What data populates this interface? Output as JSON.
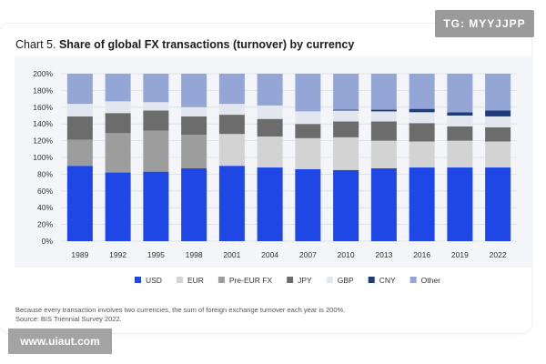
{
  "chart_data": {
    "type": "bar",
    "stacked": true,
    "title_prefix": "Chart 5.",
    "title": "Share of global FX transactions (turnover) by currency",
    "categories": [
      "1989",
      "1992",
      "1995",
      "1998",
      "2001",
      "2004",
      "2007",
      "2010",
      "2013",
      "2016",
      "2019",
      "2022"
    ],
    "y_ticks": [
      "0%",
      "20%",
      "40%",
      "60%",
      "80%",
      "100%",
      "120%",
      "140%",
      "160%",
      "180%",
      "200%"
    ],
    "ylim": [
      0,
      200
    ],
    "series": [
      {
        "name": "USD",
        "color": "#1f47e6",
        "values": [
          90,
          82,
          83,
          87,
          90,
          88,
          86,
          85,
          87,
          88,
          88,
          88
        ]
      },
      {
        "name": "EUR",
        "color": "#d3d3d3",
        "values": [
          0,
          0,
          0,
          0,
          38,
          37,
          37,
          39,
          33,
          31,
          32,
          31
        ]
      },
      {
        "name": "Pre-EUR FX",
        "color": "#9d9d9d",
        "values": [
          31,
          47,
          49,
          40,
          0,
          0,
          0,
          0,
          0,
          0,
          0,
          0
        ]
      },
      {
        "name": "JPY",
        "color": "#6c6c6c",
        "values": [
          28,
          24,
          24,
          22,
          23,
          21,
          17,
          19,
          23,
          22,
          17,
          17
        ]
      },
      {
        "name": "GBP",
        "color": "#e2e6ee",
        "values": [
          15,
          14,
          10,
          11,
          13,
          16,
          15,
          13,
          12,
          13,
          13,
          13
        ]
      },
      {
        "name": "CNY",
        "color": "#1f3b7a",
        "values": [
          0,
          0,
          0,
          0,
          0,
          0,
          0,
          1,
          2,
          4,
          4,
          7
        ]
      },
      {
        "name": "Other",
        "color": "#94a6d6",
        "values": [
          36,
          33,
          34,
          40,
          36,
          38,
          45,
          43,
          43,
          42,
          46,
          44
        ]
      }
    ]
  },
  "footnote": {
    "line1": "Because every transaction involves two currencies, the sum of foreign exchange turnover each year is 200%.",
    "line2": "Source: BIS Triennial Survey 2022."
  },
  "watermarks": {
    "tg": "TG: MYYJJPP",
    "url": "www.uiaut.com"
  }
}
